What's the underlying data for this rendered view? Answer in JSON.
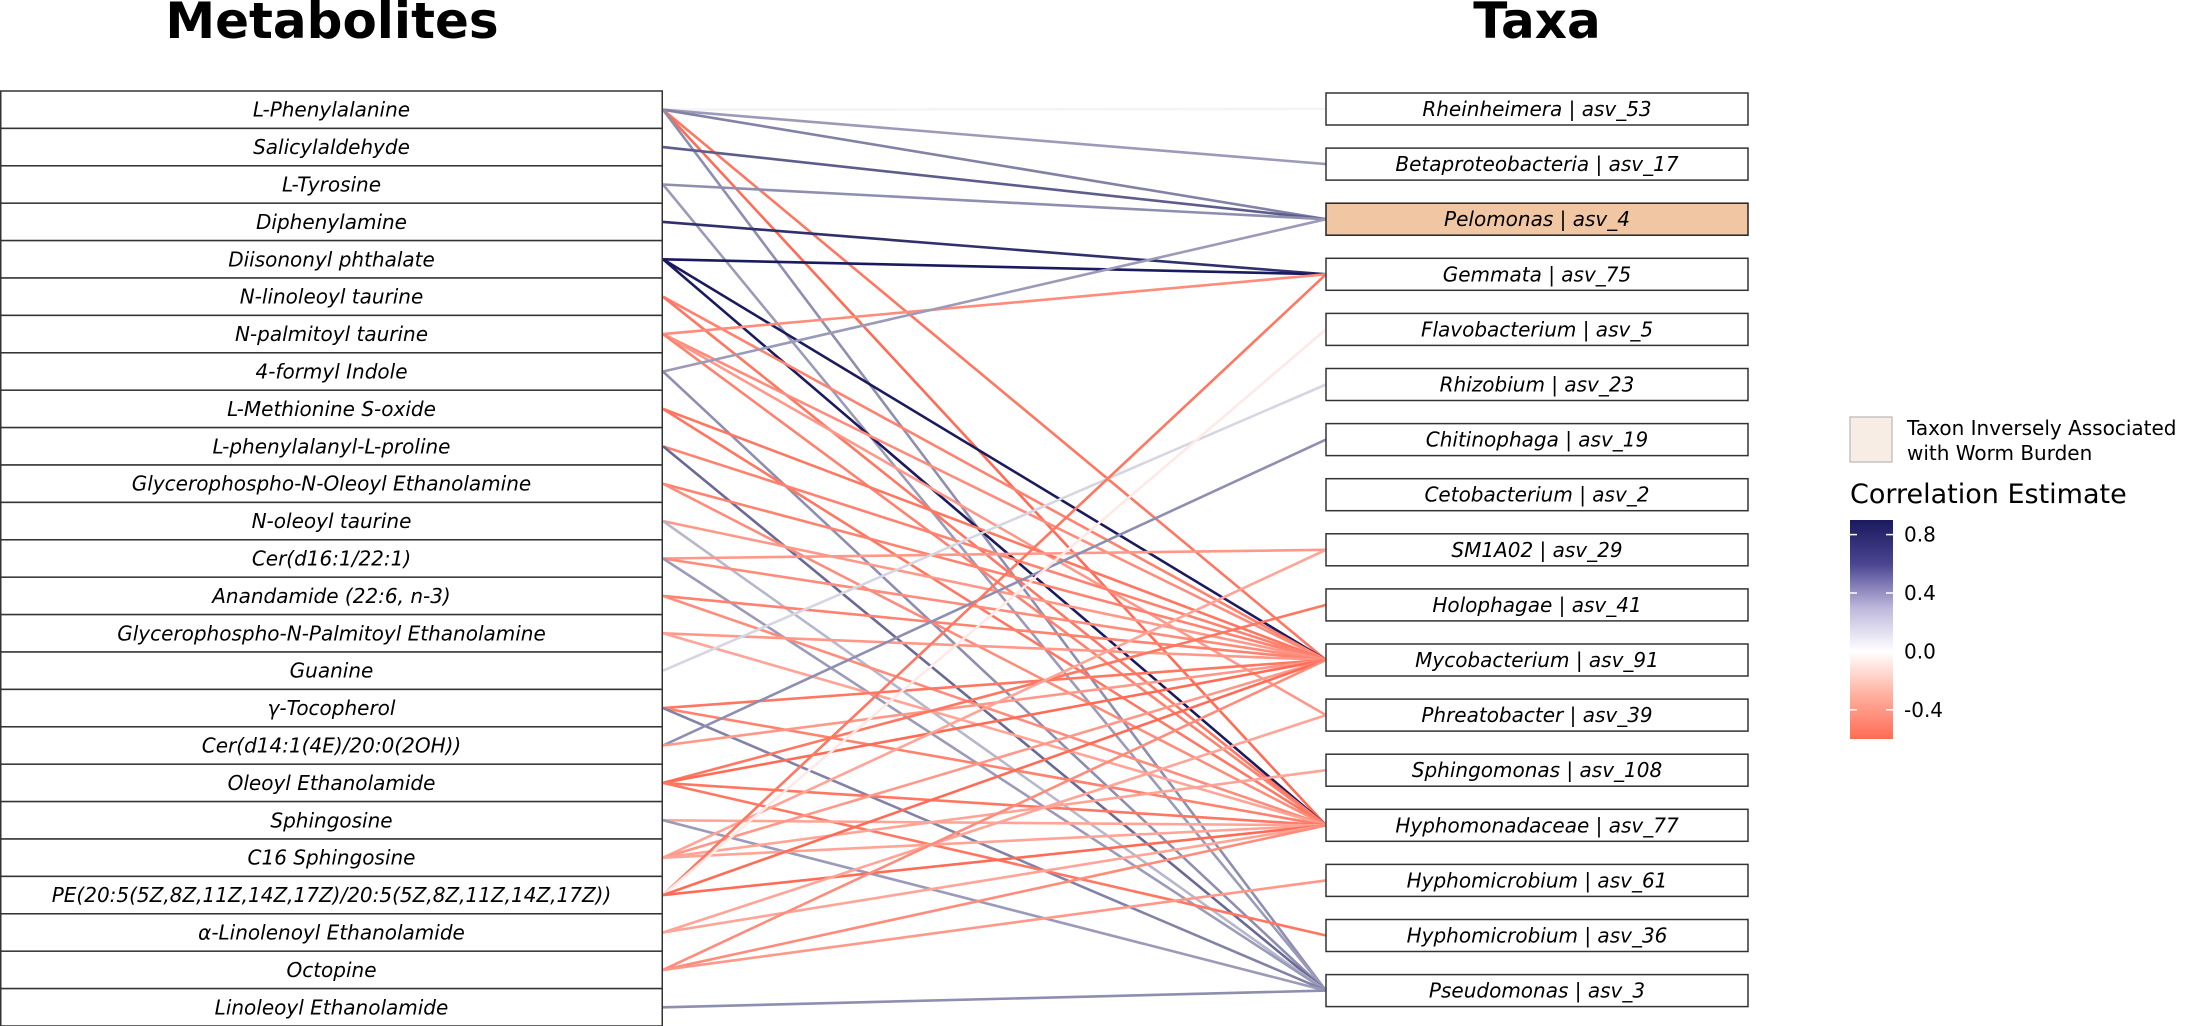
{
  "titles": {
    "left": "Metabolites",
    "right": "Taxa"
  },
  "metabolites": [
    "L-Phenylalanine",
    "Salicylaldehyde",
    "L-Tyrosine",
    "Diphenylamine",
    "Diisononyl phthalate",
    "N-linoleoyl taurine",
    "N-palmitoyl taurine",
    "4-formyl Indole",
    "L-Methionine S-oxide",
    "L-phenylalanyl-L-proline",
    "Glycerophospho-N-Oleoyl Ethanolamine",
    "N-oleoyl taurine",
    "Cer(d16:1/22:1)",
    "Anandamide (22:6, n-3)",
    "Glycerophospho-N-Palmitoyl Ethanolamine",
    "Guanine",
    "γ-Tocopherol",
    "Cer(d14:1(4E)/20:0(2OH))",
    "Oleoyl Ethanolamide",
    "Sphingosine",
    "C16 Sphingosine",
    "PE(20:5(5Z,8Z,11Z,14Z,17Z)/20:5(5Z,8Z,11Z,14Z,17Z))",
    "α-Linolenoyl Ethanolamide",
    "Octopine",
    "Linoleoyl Ethanolamide"
  ],
  "taxa": [
    {
      "label": "Rheinheimera | asv_53",
      "inverse": false
    },
    {
      "label": "Betaproteobacteria | asv_17",
      "inverse": false
    },
    {
      "label": "Pelomonas | asv_4",
      "inverse": true
    },
    {
      "label": "Gemmata | asv_75",
      "inverse": false
    },
    {
      "label": "Flavobacterium | asv_5",
      "inverse": false
    },
    {
      "label": "Rhizobium | asv_23",
      "inverse": false
    },
    {
      "label": "Chitinophaga | asv_19",
      "inverse": false
    },
    {
      "label": "Cetobacterium | asv_2",
      "inverse": false
    },
    {
      "label": "SM1A02 | asv_29",
      "inverse": false
    },
    {
      "label": "Holophagae | asv_41",
      "inverse": false
    },
    {
      "label": "Mycobacterium | asv_91",
      "inverse": false
    },
    {
      "label": "Phreatobacter | asv_39",
      "inverse": false
    },
    {
      "label": "Sphingomonas | asv_108",
      "inverse": false
    },
    {
      "label": "Hyphomonadaceae | asv_77",
      "inverse": false
    },
    {
      "label": "Hyphomicrobium | asv_61",
      "inverse": false
    },
    {
      "label": "Hyphomicrobium | asv_36",
      "inverse": false
    },
    {
      "label": "Pseudomonas | asv_3",
      "inverse": false
    }
  ],
  "edges": [
    [
      0,
      0,
      0.02
    ],
    [
      0,
      1,
      0.3
    ],
    [
      0,
      2,
      0.4
    ],
    [
      0,
      10,
      -0.5
    ],
    [
      0,
      13,
      -0.55
    ],
    [
      0,
      16,
      0.35
    ],
    [
      1,
      2,
      0.55
    ],
    [
      2,
      2,
      0.35
    ],
    [
      2,
      16,
      0.3
    ],
    [
      3,
      3,
      0.75
    ],
    [
      4,
      3,
      0.85
    ],
    [
      4,
      10,
      0.85
    ],
    [
      4,
      13,
      0.85
    ],
    [
      5,
      10,
      -0.45
    ],
    [
      5,
      13,
      -0.5
    ],
    [
      6,
      3,
      -0.4
    ],
    [
      6,
      10,
      -0.4
    ],
    [
      6,
      11,
      -0.35
    ],
    [
      6,
      13,
      -0.45
    ],
    [
      7,
      2,
      0.3
    ],
    [
      7,
      16,
      0.35
    ],
    [
      8,
      10,
      -0.5
    ],
    [
      8,
      13,
      -0.5
    ],
    [
      9,
      10,
      -0.45
    ],
    [
      9,
      16,
      0.5
    ],
    [
      10,
      10,
      -0.45
    ],
    [
      10,
      13,
      -0.4
    ],
    [
      11,
      10,
      -0.35
    ],
    [
      11,
      16,
      0.2
    ],
    [
      12,
      8,
      -0.35
    ],
    [
      12,
      10,
      -0.4
    ],
    [
      12,
      16,
      0.3
    ],
    [
      13,
      10,
      -0.45
    ],
    [
      13,
      13,
      -0.4
    ],
    [
      14,
      10,
      -0.35
    ],
    [
      14,
      13,
      -0.3
    ],
    [
      15,
      5,
      0.1
    ],
    [
      16,
      10,
      -0.5
    ],
    [
      16,
      13,
      -0.45
    ],
    [
      16,
      16,
      0.4
    ],
    [
      17,
      6,
      0.35
    ],
    [
      17,
      10,
      -0.35
    ],
    [
      18,
      9,
      -0.5
    ],
    [
      18,
      10,
      -0.55
    ],
    [
      18,
      13,
      -0.5
    ],
    [
      18,
      15,
      -0.5
    ],
    [
      19,
      13,
      -0.3
    ],
    [
      19,
      16,
      0.3
    ],
    [
      20,
      8,
      -0.3
    ],
    [
      20,
      10,
      -0.35
    ],
    [
      20,
      12,
      -0.3
    ],
    [
      20,
      13,
      -0.3
    ],
    [
      21,
      3,
      -0.5
    ],
    [
      21,
      4,
      -0.05
    ],
    [
      21,
      10,
      -0.55
    ],
    [
      21,
      13,
      -0.55
    ],
    [
      22,
      11,
      -0.3
    ],
    [
      22,
      13,
      -0.3
    ],
    [
      23,
      10,
      -0.4
    ],
    [
      23,
      13,
      -0.4
    ],
    [
      23,
      14,
      -0.35
    ],
    [
      24,
      16,
      0.35
    ]
  ],
  "legend": {
    "swatch_label_line1": "Taxon Inversely Associated",
    "swatch_label_line2": "with Worm Burden",
    "swatch_color": "#f8ede4",
    "scale_title": "Correlation Estimate",
    "ticks": [
      "0.8",
      "0.4",
      "0.0",
      "-0.4"
    ],
    "tick_values": [
      0.8,
      0.4,
      0.0,
      -0.4
    ],
    "range": [
      -0.6,
      0.9
    ],
    "colors": {
      "high": "#1a1a5e",
      "mid": "#ffffff",
      "low": "#ff6b55"
    }
  }
}
